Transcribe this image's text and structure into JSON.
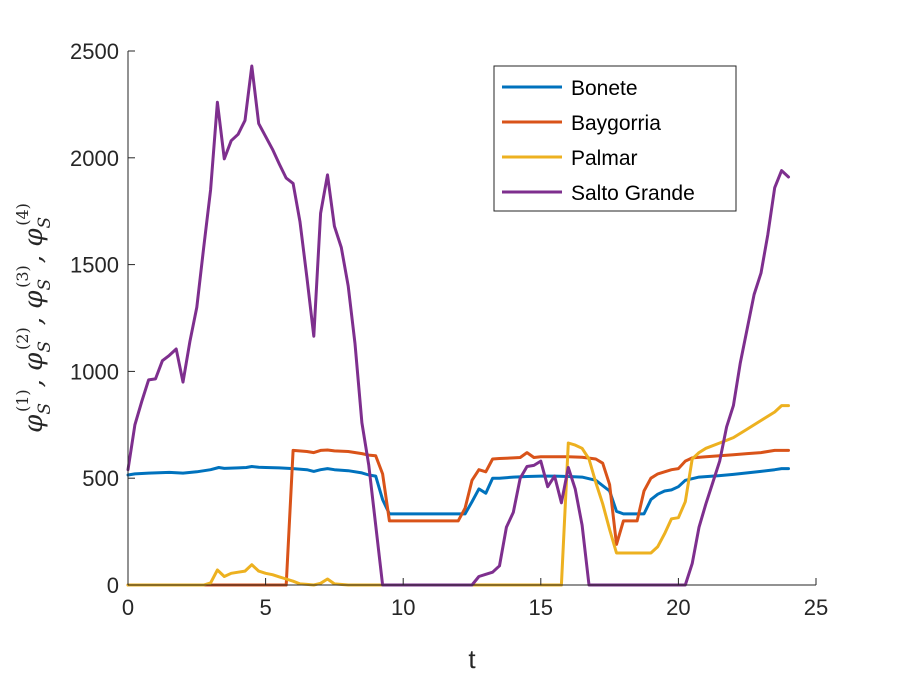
{
  "chart_data": {
    "type": "line",
    "title": "",
    "xlabel": "t",
    "ylabel": "φS(1), φS(2), φS(3), φS(4)",
    "ylabel_parts": {
      "symbol": "φ",
      "subscript": "S",
      "superscripts": [
        "(1)",
        "(2)",
        "(3)",
        "(4)"
      ],
      "separator": ","
    },
    "xlim": [
      0,
      25
    ],
    "ylim": [
      0,
      2500
    ],
    "xticks": [
      0,
      5,
      10,
      15,
      20,
      25
    ],
    "yticks": [
      0,
      500,
      1000,
      1500,
      2000,
      2500
    ],
    "xtick_labels": [
      "0",
      "5",
      "10",
      "15",
      "20",
      "25"
    ],
    "ytick_labels": [
      "0",
      "500",
      "1000",
      "1500",
      "2000",
      "2500"
    ],
    "grid": false,
    "legend_position": "top-right",
    "series": [
      {
        "name": "Bonete",
        "color": "#0072BD",
        "points": [
          [
            0,
            515
          ],
          [
            0.25,
            520
          ],
          [
            0.5,
            522
          ],
          [
            0.75,
            524
          ],
          [
            1,
            525
          ],
          [
            1.5,
            527
          ],
          [
            2,
            524
          ],
          [
            2.5,
            530
          ],
          [
            3,
            540
          ],
          [
            3.3,
            550
          ],
          [
            3.5,
            546
          ],
          [
            4,
            548
          ],
          [
            4.3,
            550
          ],
          [
            4.5,
            555
          ],
          [
            4.75,
            551
          ],
          [
            5,
            550
          ],
          [
            5.5,
            548
          ],
          [
            6,
            545
          ],
          [
            6.5,
            540
          ],
          [
            6.75,
            532
          ],
          [
            7,
            540
          ],
          [
            7.25,
            545
          ],
          [
            7.5,
            540
          ],
          [
            8,
            535
          ],
          [
            8.5,
            525
          ],
          [
            8.75,
            515
          ],
          [
            9,
            510
          ],
          [
            9.25,
            400
          ],
          [
            9.5,
            333
          ],
          [
            10,
            333
          ],
          [
            11,
            333
          ],
          [
            12,
            333
          ],
          [
            12.25,
            333
          ],
          [
            12.5,
            390
          ],
          [
            12.75,
            450
          ],
          [
            13,
            430
          ],
          [
            13.25,
            500
          ],
          [
            13.5,
            500
          ],
          [
            14,
            505
          ],
          [
            14.5,
            508
          ],
          [
            15,
            510
          ],
          [
            15.5,
            510
          ],
          [
            16,
            508
          ],
          [
            16.5,
            505
          ],
          [
            17,
            490
          ],
          [
            17.5,
            440
          ],
          [
            17.75,
            345
          ],
          [
            18,
            333
          ],
          [
            18.5,
            333
          ],
          [
            18.75,
            333
          ],
          [
            19,
            400
          ],
          [
            19.25,
            425
          ],
          [
            19.5,
            440
          ],
          [
            19.75,
            445
          ],
          [
            20,
            460
          ],
          [
            20.25,
            490
          ],
          [
            20.75,
            505
          ],
          [
            21.5,
            512
          ],
          [
            22,
            518
          ],
          [
            22.5,
            525
          ],
          [
            23,
            532
          ],
          [
            23.5,
            540
          ],
          [
            23.75,
            545
          ],
          [
            24,
            545
          ]
        ]
      },
      {
        "name": "Baygorria",
        "color": "#D95319",
        "points": [
          [
            0,
            0
          ],
          [
            5,
            0
          ],
          [
            5.5,
            0
          ],
          [
            5.75,
            0
          ],
          [
            6,
            630
          ],
          [
            6.5,
            625
          ],
          [
            6.75,
            620
          ],
          [
            7,
            630
          ],
          [
            7.25,
            632
          ],
          [
            7.5,
            628
          ],
          [
            8,
            625
          ],
          [
            8.5,
            615
          ],
          [
            8.75,
            608
          ],
          [
            9,
            605
          ],
          [
            9.25,
            520
          ],
          [
            9.5,
            300
          ],
          [
            10,
            300
          ],
          [
            11,
            300
          ],
          [
            12,
            300
          ],
          [
            12.25,
            360
          ],
          [
            12.5,
            490
          ],
          [
            12.75,
            540
          ],
          [
            13,
            530
          ],
          [
            13.25,
            590
          ],
          [
            13.5,
            592
          ],
          [
            14,
            595
          ],
          [
            14.25,
            597
          ],
          [
            14.5,
            620
          ],
          [
            14.75,
            597
          ],
          [
            15,
            600
          ],
          [
            15.5,
            600
          ],
          [
            16,
            600
          ],
          [
            16.5,
            598
          ],
          [
            17,
            590
          ],
          [
            17.25,
            570
          ],
          [
            17.5,
            470
          ],
          [
            17.75,
            190
          ],
          [
            18,
            300
          ],
          [
            18.5,
            300
          ],
          [
            18.75,
            440
          ],
          [
            19,
            500
          ],
          [
            19.25,
            520
          ],
          [
            19.5,
            530
          ],
          [
            19.75,
            540
          ],
          [
            20,
            545
          ],
          [
            20.25,
            580
          ],
          [
            20.5,
            595
          ],
          [
            21,
            600
          ],
          [
            21.5,
            605
          ],
          [
            22,
            610
          ],
          [
            22.5,
            615
          ],
          [
            23,
            620
          ],
          [
            23.5,
            630
          ],
          [
            24,
            630
          ]
        ]
      },
      {
        "name": "Palmar",
        "color": "#EDB120",
        "points": [
          [
            0,
            0
          ],
          [
            2.5,
            0
          ],
          [
            2.75,
            0
          ],
          [
            3,
            10
          ],
          [
            3.25,
            70
          ],
          [
            3.5,
            40
          ],
          [
            3.75,
            55
          ],
          [
            4,
            60
          ],
          [
            4.25,
            65
          ],
          [
            4.5,
            95
          ],
          [
            4.75,
            65
          ],
          [
            5,
            55
          ],
          [
            5.25,
            48
          ],
          [
            5.5,
            38
          ],
          [
            5.75,
            28
          ],
          [
            6,
            18
          ],
          [
            6.25,
            5
          ],
          [
            6.5,
            3
          ],
          [
            6.75,
            0
          ],
          [
            7,
            8
          ],
          [
            7.25,
            28
          ],
          [
            7.5,
            5
          ],
          [
            8,
            0
          ],
          [
            10,
            0
          ],
          [
            12,
            0
          ],
          [
            14,
            0
          ],
          [
            15.5,
            0
          ],
          [
            15.75,
            0
          ],
          [
            16,
            665
          ],
          [
            16.25,
            655
          ],
          [
            16.5,
            640
          ],
          [
            16.75,
            590
          ],
          [
            17,
            480
          ],
          [
            17.25,
            380
          ],
          [
            17.5,
            260
          ],
          [
            17.75,
            150
          ],
          [
            18,
            150
          ],
          [
            18.5,
            150
          ],
          [
            19,
            150
          ],
          [
            19.25,
            180
          ],
          [
            19.5,
            240
          ],
          [
            19.75,
            310
          ],
          [
            20,
            315
          ],
          [
            20.25,
            390
          ],
          [
            20.5,
            590
          ],
          [
            20.75,
            620
          ],
          [
            21,
            640
          ],
          [
            21.5,
            665
          ],
          [
            22,
            690
          ],
          [
            22.5,
            730
          ],
          [
            23,
            770
          ],
          [
            23.5,
            810
          ],
          [
            23.75,
            840
          ],
          [
            24,
            840
          ]
        ]
      },
      {
        "name": "Salto Grande",
        "color": "#7E2F8E",
        "points": [
          [
            0,
            540
          ],
          [
            0.25,
            750
          ],
          [
            0.5,
            860
          ],
          [
            0.75,
            960
          ],
          [
            1,
            965
          ],
          [
            1.25,
            1050
          ],
          [
            1.5,
            1075
          ],
          [
            1.75,
            1105
          ],
          [
            2,
            950
          ],
          [
            2.25,
            1140
          ],
          [
            2.5,
            1300
          ],
          [
            2.75,
            1580
          ],
          [
            3,
            1850
          ],
          [
            3.25,
            2260
          ],
          [
            3.5,
            1995
          ],
          [
            3.75,
            2080
          ],
          [
            4,
            2110
          ],
          [
            4.25,
            2175
          ],
          [
            4.5,
            2430
          ],
          [
            4.75,
            2160
          ],
          [
            5,
            2100
          ],
          [
            5.25,
            2040
          ],
          [
            5.5,
            1970
          ],
          [
            5.75,
            1905
          ],
          [
            6,
            1880
          ],
          [
            6.25,
            1700
          ],
          [
            6.5,
            1440
          ],
          [
            6.75,
            1165
          ],
          [
            7,
            1740
          ],
          [
            7.25,
            1920
          ],
          [
            7.5,
            1680
          ],
          [
            7.75,
            1580
          ],
          [
            8,
            1400
          ],
          [
            8.25,
            1130
          ],
          [
            8.5,
            760
          ],
          [
            8.75,
            560
          ],
          [
            9,
            280
          ],
          [
            9.25,
            0
          ],
          [
            9.5,
            0
          ],
          [
            10,
            0
          ],
          [
            11,
            0
          ],
          [
            12,
            0
          ],
          [
            12.5,
            0
          ],
          [
            12.75,
            40
          ],
          [
            13,
            50
          ],
          [
            13.25,
            60
          ],
          [
            13.5,
            90
          ],
          [
            13.75,
            270
          ],
          [
            14,
            340
          ],
          [
            14.25,
            500
          ],
          [
            14.5,
            555
          ],
          [
            14.75,
            560
          ],
          [
            15,
            580
          ],
          [
            15.25,
            460
          ],
          [
            15.5,
            510
          ],
          [
            15.75,
            385
          ],
          [
            16,
            550
          ],
          [
            16.25,
            450
          ],
          [
            16.5,
            280
          ],
          [
            16.75,
            0
          ],
          [
            17,
            0
          ],
          [
            18,
            0
          ],
          [
            19,
            0
          ],
          [
            20,
            0
          ],
          [
            20.25,
            0
          ],
          [
            20.5,
            100
          ],
          [
            20.75,
            270
          ],
          [
            21,
            380
          ],
          [
            21.25,
            480
          ],
          [
            21.5,
            580
          ],
          [
            21.75,
            740
          ],
          [
            22,
            840
          ],
          [
            22.25,
            1040
          ],
          [
            22.5,
            1200
          ],
          [
            22.75,
            1360
          ],
          [
            23,
            1460
          ],
          [
            23.25,
            1640
          ],
          [
            23.5,
            1860
          ],
          [
            23.75,
            1940
          ],
          [
            24,
            1910
          ]
        ]
      }
    ]
  }
}
